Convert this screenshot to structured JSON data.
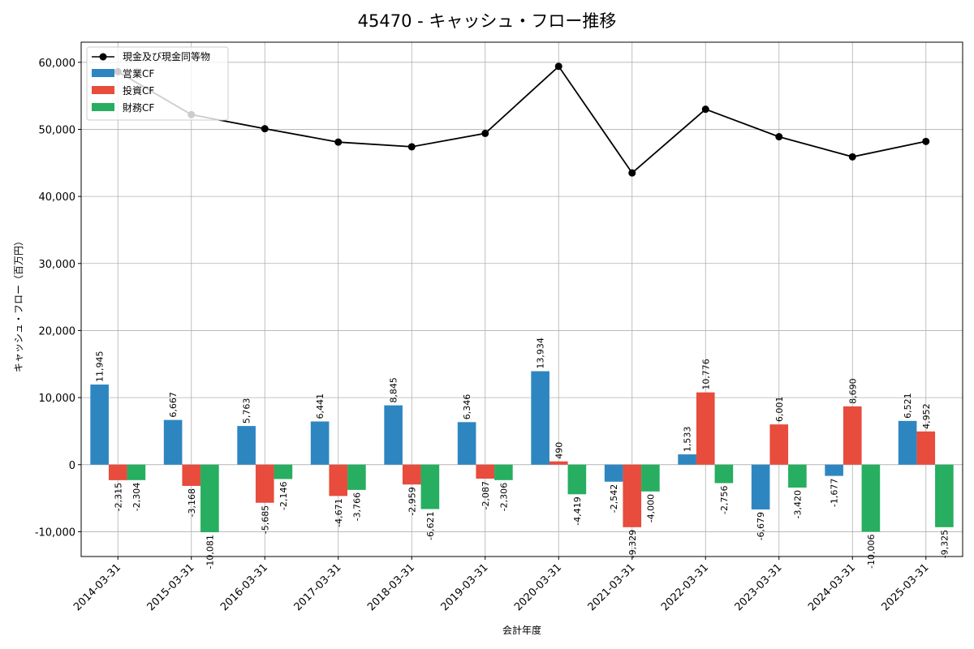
{
  "chart_data": {
    "type": "bar",
    "title": "45470 - キャッシュ・フロー推移",
    "xlabel": "会計年度",
    "ylabel": "キャッシュ・フロー（百万円）",
    "ylim": [
      -13700,
      63000
    ],
    "yticks": [
      -10000,
      0,
      10000,
      20000,
      30000,
      40000,
      50000,
      60000
    ],
    "ytick_labels": [
      "-10,000",
      "0",
      "10,000",
      "20,000",
      "30,000",
      "40,000",
      "50,000",
      "60,000"
    ],
    "grid": true,
    "legend_position": "top-left",
    "categories": [
      "2014-03-31",
      "2015-03-31",
      "2016-03-31",
      "2017-03-31",
      "2018-03-31",
      "2019-03-31",
      "2020-03-31",
      "2021-03-31",
      "2022-03-31",
      "2023-03-31",
      "2024-03-31",
      "2025-03-31"
    ],
    "series": [
      {
        "name": "営業CF",
        "kind": "bar",
        "color": "#2e86c1",
        "values": [
          11945,
          6667,
          5763,
          6441,
          8845,
          6346,
          13934,
          -2542,
          1533,
          -6679,
          -1677,
          6521
        ],
        "labels": [
          "11,945",
          "6,667",
          "5,763",
          "6,441",
          "8,845",
          "6,346",
          "13,934",
          "-2,542",
          "1,533",
          "-6,679",
          "-1,677",
          "6,521"
        ]
      },
      {
        "name": "投資CF",
        "kind": "bar",
        "color": "#e74c3c",
        "values": [
          -2315,
          -3168,
          -5685,
          -4671,
          -2959,
          -2087,
          490,
          -9329,
          10776,
          6001,
          8690,
          4952
        ],
        "labels": [
          "-2,315",
          "-3,168",
          "-5,685",
          "-4,671",
          "-2,959",
          "-2,087",
          "490",
          "-9,329",
          "10,776",
          "6,001",
          "8,690",
          "4,952"
        ]
      },
      {
        "name": "財務CF",
        "kind": "bar",
        "color": "#27ae60",
        "values": [
          -2304,
          -10081,
          -2146,
          -3766,
          -6621,
          -2306,
          -4419,
          -4000,
          -2756,
          -3420,
          -10006,
          -9325
        ],
        "labels": [
          "-2,304",
          "-10,081",
          "-2,146",
          "-3,766",
          "-6,621",
          "-2,306",
          "-4,419",
          "-4,000",
          "-2,756",
          "-3,420",
          "-10,006",
          "-9,325"
        ]
      },
      {
        "name": "現金及び現金同等物",
        "kind": "line",
        "color": "#000000",
        "values": [
          58600,
          52200,
          50100,
          48100,
          47400,
          49400,
          59400,
          43500,
          53000,
          48900,
          45900,
          48200
        ]
      }
    ]
  }
}
